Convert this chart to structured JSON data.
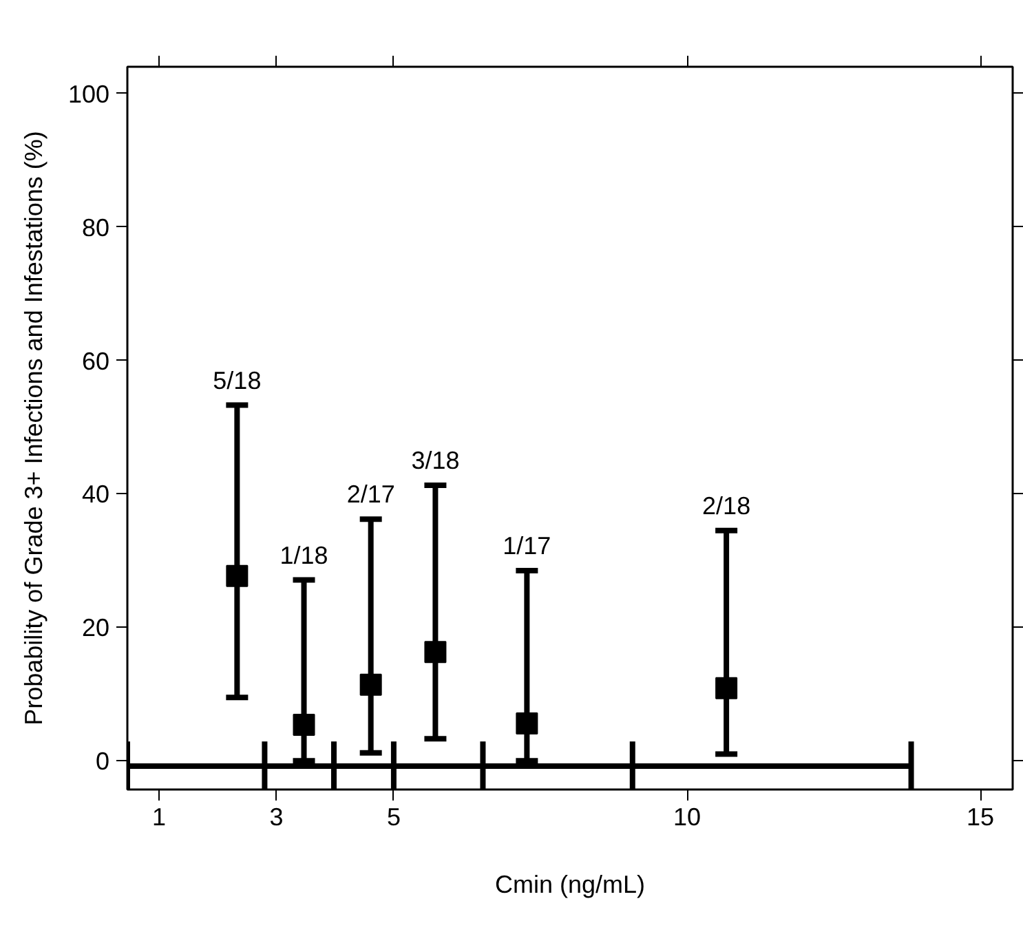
{
  "chart_data": {
    "type": "scatter",
    "xlabel": "Cmin (ng/mL)",
    "ylabel": "Probability of Grade 3+ Infections and Infestations (%)",
    "xlim": [
      0.46,
      15.55
    ],
    "ylim": [
      -4.3,
      104
    ],
    "xticks": [
      1,
      3,
      5,
      10,
      15
    ],
    "yticks": [
      0,
      20,
      40,
      60,
      80,
      100
    ],
    "grid": false,
    "annotations": [
      {
        "text": "5/18",
        "x": 2.33,
        "y": 53.3
      },
      {
        "text": "1/18",
        "x": 3.47,
        "y": 27.1
      },
      {
        "text": "2/17",
        "x": 4.61,
        "y": 36.2
      },
      {
        "text": "3/18",
        "x": 5.71,
        "y": 41.3
      },
      {
        "text": "1/17",
        "x": 7.27,
        "y": 28.5
      },
      {
        "text": "2/18",
        "x": 10.67,
        "y": 34.5
      }
    ],
    "series": [
      {
        "marker": "square",
        "color": "#000000",
        "x": [
          2.33,
          3.47,
          4.61,
          5.71,
          7.27,
          10.67
        ],
        "values": [
          27.7,
          5.4,
          11.4,
          16.3,
          5.6,
          10.9
        ],
        "errors": [
          [
            9.5,
            53.3
          ],
          [
            0,
            27.1
          ],
          [
            1.2,
            36.2
          ],
          [
            3.3,
            41.3
          ],
          [
            0,
            28.5
          ],
          [
            1.0,
            34.5
          ]
        ]
      },
      {
        "type": "line",
        "marker": "none",
        "color": "#000000",
        "x": [
          0.46,
          2.8,
          3.98,
          5.0,
          6.52,
          9.07,
          13.82
        ],
        "values": [
          -0.8,
          -0.8,
          -0.8,
          -0.8,
          -0.8,
          -0.8,
          -0.8
        ],
        "errors": [
          [
            -4.3,
            2.9
          ],
          [
            -4.3,
            2.9
          ],
          [
            -4.3,
            2.9
          ],
          [
            -4.3,
            2.9
          ],
          [
            -4.3,
            2.9
          ],
          [
            -4.3,
            2.9
          ],
          [
            -4.3,
            2.9
          ]
        ]
      }
    ]
  }
}
